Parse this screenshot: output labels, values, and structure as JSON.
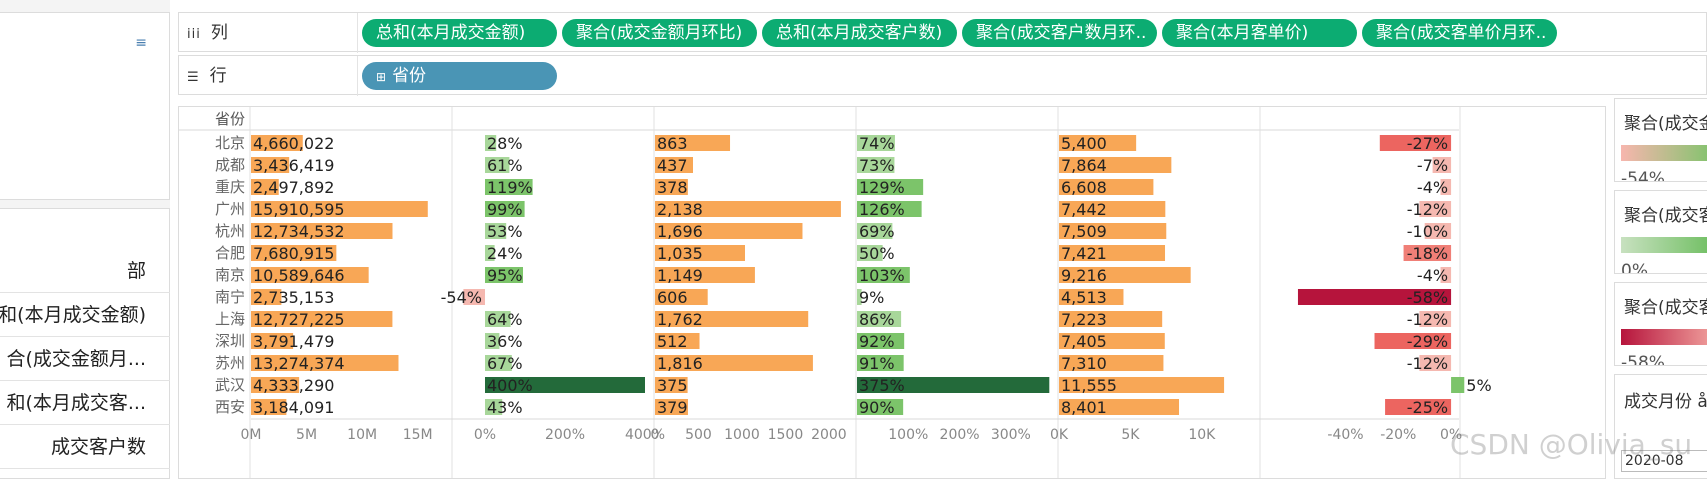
{
  "left_pane": {
    "items": [
      {
        "label": "部"
      },
      {
        "label": "和(本月成交金额)"
      },
      {
        "label": "合(成交金额月..."
      },
      {
        "label": "和(本月成交客..."
      },
      {
        "label": "成交客户数"
      }
    ]
  },
  "shelves": {
    "columns": {
      "label": "列",
      "icon": "columns-icon",
      "pills": [
        "总和(本月成交金额)",
        "聚合(成交金额月环比)",
        "总和(本月成交客户数)",
        "聚合(成交客户数月环..",
        "聚合(本月客单价)",
        "聚合(成交客单价月环.."
      ]
    },
    "rows": {
      "label": "行",
      "icon": "rows-icon",
      "pills": [
        "省份"
      ]
    }
  },
  "legends": [
    {
      "title": "聚合(成交金",
      "value": "-54%",
      "gradient_from": "#f7b6ae",
      "gradient_to": "#7cc46a"
    },
    {
      "title": "聚合(成交客",
      "value": "0%",
      "gradient_from": "#c8e1c0",
      "gradient_to": "#6cbd5e"
    },
    {
      "title": "聚合(成交客",
      "value": "-58%",
      "gradient_from": "#b6143c",
      "gradient_to": "#f2a5a0"
    }
  ],
  "filter": {
    "title": "成交月份 å",
    "value": "2020-08"
  },
  "watermark": "CSDN @Olivia_su",
  "colors": {
    "pill_green": "#0cac72",
    "pill_blue": "#4a95b5",
    "bar_orange": "#f8a756",
    "pos_green": "#7cc46a",
    "dark_green": "#236a3a",
    "neg_light": "#f5b8b0",
    "neg_mid": "#ec6560",
    "neg_dark": "#b6143c"
  },
  "chart_data": {
    "type": "bar",
    "row_header": "省份",
    "categories": [
      "北京",
      "成都",
      "重庆",
      "广州",
      "杭州",
      "合肥",
      "南京",
      "南宁",
      "上海",
      "深圳",
      "苏州",
      "武汉",
      "西安"
    ],
    "series": [
      {
        "name": "总和(本月成交金额)",
        "values": [
          4660022,
          3436419,
          2497892,
          15910595,
          12734532,
          7680915,
          10589646,
          2735153,
          12727225,
          3791479,
          13274374,
          4333290,
          3184091
        ],
        "labels": [
          "4,660,022",
          "3,436,419",
          "2,497,892",
          "15,910,595",
          "12,734,532",
          "7,680,915",
          "10,589,646",
          "2,735,153",
          "12,727,225",
          "3,791,479",
          "13,274,374",
          "4,333,290",
          "3,184,091"
        ],
        "ticks": [
          "0M",
          "5M",
          "10M",
          "15M"
        ]
      },
      {
        "name": "聚合(成交金额月环比)",
        "values": [
          28,
          61,
          119,
          99,
          53,
          24,
          95,
          -54,
          64,
          36,
          67,
          400,
          43
        ],
        "labels": [
          "28%",
          "61%",
          "119%",
          "99%",
          "53%",
          "24%",
          "95%",
          "-54%",
          "64%",
          "36%",
          "67%",
          "400%",
          "43%"
        ],
        "ticks": [
          "0%",
          "200%",
          "400%"
        ]
      },
      {
        "name": "总和(本月成交客户数)",
        "values": [
          863,
          437,
          378,
          2138,
          1696,
          1035,
          1149,
          606,
          1762,
          512,
          1816,
          375,
          379
        ],
        "labels": [
          "863",
          "437",
          "378",
          "2,138",
          "1,696",
          "1,035",
          "1,149",
          "606",
          "1,762",
          "512",
          "1,816",
          "375",
          "379"
        ],
        "ticks": [
          "0",
          "500",
          "1000",
          "1500",
          "2000"
        ]
      },
      {
        "name": "聚合(成交客户数月环比)",
        "values": [
          74,
          73,
          129,
          126,
          69,
          50,
          103,
          9,
          86,
          92,
          91,
          375,
          90
        ],
        "labels": [
          "74%",
          "73%",
          "129%",
          "126%",
          "69%",
          "50%",
          "103%",
          "9%",
          "86%",
          "92%",
          "91%",
          "375%",
          "90%"
        ],
        "ticks": [
          "100%",
          "200%",
          "300%"
        ]
      },
      {
        "name": "聚合(本月客单价)",
        "values": [
          5400,
          7864,
          6608,
          7442,
          7509,
          7421,
          9216,
          4513,
          7223,
          7405,
          7310,
          11555,
          8401
        ],
        "labels": [
          "5,400",
          "7,864",
          "6,608",
          "7,442",
          "7,509",
          "7,421",
          "9,216",
          "4,513",
          "7,223",
          "7,405",
          "7,310",
          "11,555",
          "8,401"
        ],
        "ticks": [
          "0K",
          "5K",
          "10K"
        ]
      },
      {
        "name": "聚合(成交客单价月环比)",
        "values": [
          -27,
          -7,
          -4,
          -12,
          -10,
          -18,
          -4,
          -58,
          -12,
          -29,
          -12,
          5,
          -25
        ],
        "labels": [
          "-27%",
          "-7%",
          "-4%",
          "-12%",
          "-10%",
          "-18%",
          "-4%",
          "-58%",
          "-12%",
          "-29%",
          "-12%",
          "5%",
          "-25%"
        ],
        "ticks": [
          "-40%",
          "-20%",
          "0%"
        ]
      }
    ]
  }
}
